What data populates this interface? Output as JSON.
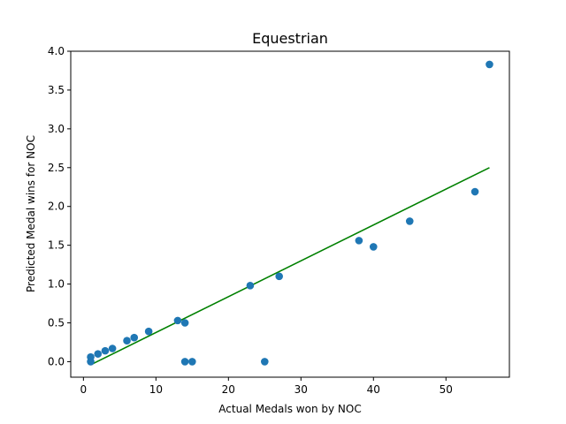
{
  "chart_data": {
    "type": "scatter",
    "title": "Equestrian",
    "xlabel": "Actual Medals won by NOC",
    "ylabel": "Predicted Medal wins for NOC",
    "xlim": [
      -1.75,
      58.75
    ],
    "ylim": [
      -0.2,
      4.0
    ],
    "xticks": [
      "0",
      "10",
      "20",
      "30",
      "40",
      "50"
    ],
    "yticks": [
      "0.0",
      "0.5",
      "1.0",
      "1.5",
      "2.0",
      "2.5",
      "3.0",
      "3.5",
      "4.0"
    ],
    "grid": false,
    "points": [
      {
        "x": 1,
        "y": 0.06
      },
      {
        "x": 1,
        "y": 0.0
      },
      {
        "x": 2,
        "y": 0.1
      },
      {
        "x": 3,
        "y": 0.14
      },
      {
        "x": 4,
        "y": 0.17
      },
      {
        "x": 6,
        "y": 0.27
      },
      {
        "x": 7,
        "y": 0.31
      },
      {
        "x": 9,
        "y": 0.39
      },
      {
        "x": 13,
        "y": 0.53
      },
      {
        "x": 14,
        "y": 0.5
      },
      {
        "x": 14,
        "y": 0.0
      },
      {
        "x": 15,
        "y": 0.0
      },
      {
        "x": 23,
        "y": 0.98
      },
      {
        "x": 25,
        "y": 0.0
      },
      {
        "x": 27,
        "y": 1.1
      },
      {
        "x": 38,
        "y": 1.56
      },
      {
        "x": 40,
        "y": 1.48
      },
      {
        "x": 45,
        "y": 1.81
      },
      {
        "x": 54,
        "y": 2.19
      },
      {
        "x": 56,
        "y": 3.83
      }
    ],
    "fit_line": {
      "x": [
        1,
        56
      ],
      "y": [
        -0.04,
        2.5
      ]
    },
    "colors": {
      "points": "#1f77b4",
      "fit_line": "#008000"
    }
  }
}
